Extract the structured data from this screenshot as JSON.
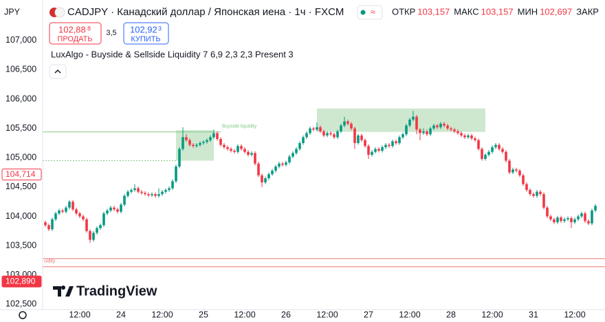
{
  "header": {
    "currency": "JPY",
    "symbol": "CADJPY · Канадский доллар / Японская иена · 1ч · FXCM",
    "ohlc": [
      {
        "label": "ОТКР",
        "value": "103,157"
      },
      {
        "label": "МАКС",
        "value": "103,157"
      },
      {
        "label": "МИН",
        "value": "102,697"
      },
      {
        "label": "ЗАКР"
      }
    ],
    "sell": {
      "price": "102,88",
      "pip": "8",
      "label": "ПРОДАТЬ"
    },
    "spread": "3,5",
    "buy": {
      "price": "102,92",
      "pip": "3",
      "label": "КУПИТЬ"
    },
    "indicator": "LuxAlgo - Buyside & Sellside Liquidity 7 6,9 2,3 2,3 Present 3",
    "logo": "TradingView"
  },
  "chart_data": {
    "type": "candlestick",
    "up_color": "#089981",
    "down_color": "#f23645",
    "ylim": [
      102.41,
      107.69
    ],
    "xlim": [
      -0.8,
      162.8
    ],
    "yticks": [
      {
        "value": 102.5,
        "label": "102,500"
      },
      {
        "value": 103,
        "label": "103,000"
      },
      {
        "value": 103.5,
        "label": "103,500"
      },
      {
        "value": 104,
        "label": "104,000"
      },
      {
        "value": 104.5,
        "label": "104,500"
      },
      {
        "value": 105,
        "label": "105,000"
      },
      {
        "value": 105.5,
        "label": "105,500"
      },
      {
        "value": 106,
        "label": "106,000"
      },
      {
        "value": 106.5,
        "label": "106,500"
      },
      {
        "value": 107,
        "label": "107,000"
      }
    ],
    "xticks": [
      {
        "value": 10,
        "label": "12:00"
      },
      {
        "value": 22,
        "label": "24"
      },
      {
        "value": 34,
        "label": "12:00"
      },
      {
        "value": 46,
        "label": "25"
      },
      {
        "value": 58,
        "label": "12:00"
      },
      {
        "value": 70,
        "label": "26"
      },
      {
        "value": 82,
        "label": "12:00"
      },
      {
        "value": 94,
        "label": "27"
      },
      {
        "value": 106,
        "label": "12:00"
      },
      {
        "value": 118,
        "label": "28"
      },
      {
        "value": 130,
        "label": "12:00"
      },
      {
        "value": 142,
        "label": "31"
      },
      {
        "value": 154,
        "label": "12:00"
      }
    ],
    "zones": [
      {
        "x": [
          38,
          49
        ],
        "y": [
          104.95,
          105.47
        ],
        "color": "#a5d6a7"
      },
      {
        "x": [
          79,
          128
        ],
        "y": [
          105.44,
          105.84
        ],
        "color": "#a5d6a7"
      }
    ],
    "levels": [
      {
        "value": 105.44,
        "x": [
          -1,
          51
        ],
        "color": "#81c784",
        "label": "Buyside liquidity"
      },
      {
        "value": 104.95,
        "x": [
          -1,
          38
        ],
        "color": "#81c784"
      },
      {
        "value": 103.28,
        "x": [
          -1,
          163
        ],
        "color": "#e57373"
      },
      {
        "value": 103.14,
        "x": [
          -1,
          163
        ],
        "color": "#e57373",
        "label": "uidity"
      }
    ],
    "price_labels": [
      {
        "value": 104.714,
        "label": "104,714",
        "style": "outline",
        "color": "#f23645"
      },
      {
        "value": 102.89,
        "label": "102,890",
        "style": "filled",
        "color": "#f23645"
      }
    ],
    "candles": [
      [
        103.9,
        103.93,
        103.82,
        103.85
      ],
      [
        103.85,
        103.88,
        103.75,
        103.78
      ],
      [
        103.78,
        103.98,
        103.75,
        103.95
      ],
      [
        103.95,
        104.08,
        103.92,
        104.05
      ],
      [
        104.05,
        104.13,
        104.02,
        104.1
      ],
      [
        104.1,
        104.13,
        104.05,
        104.08
      ],
      [
        104.08,
        104.18,
        104.05,
        104.15
      ],
      [
        104.15,
        104.28,
        104.12,
        104.25
      ],
      [
        104.25,
        104.28,
        104.09,
        104.12
      ],
      [
        104.12,
        104.15,
        104.02,
        104.05
      ],
      [
        104.05,
        104.08,
        103.97,
        104.0
      ],
      [
        104.0,
        104.03,
        103.92,
        103.95
      ],
      [
        103.95,
        103.98,
        103.72,
        103.75
      ],
      [
        103.75,
        103.78,
        103.55,
        103.6
      ],
      [
        103.6,
        103.75,
        103.57,
        103.72
      ],
      [
        103.72,
        103.83,
        103.69,
        103.8
      ],
      [
        103.8,
        103.88,
        103.77,
        103.85
      ],
      [
        103.85,
        104.08,
        103.82,
        104.05
      ],
      [
        104.05,
        104.13,
        104.02,
        104.1
      ],
      [
        104.1,
        104.18,
        104.07,
        104.15
      ],
      [
        104.15,
        104.18,
        104.09,
        104.12
      ],
      [
        104.12,
        104.15,
        104.05,
        104.08
      ],
      [
        104.08,
        104.23,
        104.05,
        104.2
      ],
      [
        104.2,
        104.38,
        104.17,
        104.35
      ],
      [
        104.35,
        104.45,
        104.32,
        104.42
      ],
      [
        104.42,
        104.48,
        104.39,
        104.45
      ],
      [
        104.45,
        104.55,
        104.42,
        104.48
      ],
      [
        104.48,
        104.51,
        104.39,
        104.42
      ],
      [
        104.42,
        104.45,
        104.37,
        104.4
      ],
      [
        104.4,
        104.43,
        104.35,
        104.38
      ],
      [
        104.38,
        104.41,
        104.33,
        104.36
      ],
      [
        104.36,
        104.41,
        104.33,
        104.38
      ],
      [
        104.38,
        104.41,
        104.32,
        104.35
      ],
      [
        104.35,
        104.48,
        104.32,
        104.38
      ],
      [
        104.38,
        104.45,
        104.35,
        104.42
      ],
      [
        104.42,
        104.48,
        104.39,
        104.45
      ],
      [
        104.45,
        104.51,
        104.42,
        104.48
      ],
      [
        104.48,
        104.63,
        104.45,
        104.6
      ],
      [
        104.6,
        104.88,
        104.57,
        104.85
      ],
      [
        104.85,
        105.18,
        104.82,
        105.15
      ],
      [
        105.15,
        105.52,
        105.12,
        105.35
      ],
      [
        105.35,
        105.4,
        105.27,
        105.3
      ],
      [
        105.3,
        105.33,
        105.19,
        105.22
      ],
      [
        105.22,
        105.25,
        105.17,
        105.2
      ],
      [
        105.2,
        105.25,
        105.17,
        105.22
      ],
      [
        105.22,
        105.28,
        105.19,
        105.25
      ],
      [
        105.25,
        105.3,
        105.22,
        105.27
      ],
      [
        105.27,
        105.33,
        105.24,
        105.3
      ],
      [
        105.3,
        105.38,
        105.27,
        105.35
      ],
      [
        105.35,
        105.48,
        105.32,
        105.42
      ],
      [
        105.42,
        105.45,
        105.29,
        105.32
      ],
      [
        105.32,
        105.35,
        105.19,
        105.22
      ],
      [
        105.22,
        105.25,
        105.15,
        105.18
      ],
      [
        105.18,
        105.21,
        105.12,
        105.15
      ],
      [
        105.15,
        105.18,
        105.09,
        105.12
      ],
      [
        105.12,
        105.15,
        105.07,
        105.1
      ],
      [
        105.1,
        105.23,
        105.07,
        105.2
      ],
      [
        105.2,
        105.23,
        105.12,
        105.15
      ],
      [
        105.15,
        105.18,
        105.07,
        105.1
      ],
      [
        105.1,
        105.13,
        105.02,
        105.05
      ],
      [
        105.05,
        105.11,
        105.02,
        105.08
      ],
      [
        105.08,
        105.11,
        104.87,
        104.9
      ],
      [
        104.9,
        104.93,
        104.67,
        104.7
      ],
      [
        104.7,
        104.73,
        104.5,
        104.58
      ],
      [
        104.58,
        104.68,
        104.55,
        104.65
      ],
      [
        104.65,
        104.75,
        104.62,
        104.72
      ],
      [
        104.72,
        104.81,
        104.69,
        104.78
      ],
      [
        104.78,
        104.88,
        104.75,
        104.85
      ],
      [
        104.85,
        104.93,
        104.82,
        104.9
      ],
      [
        104.9,
        104.93,
        104.85,
        104.88
      ],
      [
        104.88,
        104.95,
        104.85,
        104.92
      ],
      [
        104.92,
        105.05,
        104.89,
        105.02
      ],
      [
        105.02,
        105.11,
        104.99,
        105.08
      ],
      [
        105.08,
        105.18,
        105.05,
        105.15
      ],
      [
        105.15,
        105.28,
        105.12,
        105.25
      ],
      [
        105.25,
        105.38,
        105.22,
        105.35
      ],
      [
        105.35,
        105.45,
        105.32,
        105.42
      ],
      [
        105.42,
        105.53,
        105.39,
        105.5
      ],
      [
        105.5,
        105.53,
        105.45,
        105.48
      ],
      [
        105.48,
        105.6,
        105.45,
        105.52
      ],
      [
        105.52,
        105.55,
        105.42,
        105.45
      ],
      [
        105.45,
        105.48,
        105.35,
        105.38
      ],
      [
        105.38,
        105.45,
        105.35,
        105.42
      ],
      [
        105.42,
        105.45,
        105.37,
        105.4
      ],
      [
        105.4,
        105.43,
        105.32,
        105.35
      ],
      [
        105.35,
        105.48,
        105.32,
        105.45
      ],
      [
        105.45,
        105.58,
        105.42,
        105.55
      ],
      [
        105.55,
        105.7,
        105.52,
        105.62
      ],
      [
        105.62,
        105.65,
        105.55,
        105.58
      ],
      [
        105.58,
        105.61,
        105.47,
        105.5
      ],
      [
        105.5,
        105.53,
        105.15,
        105.25
      ],
      [
        105.25,
        105.41,
        105.22,
        105.38
      ],
      [
        105.38,
        105.41,
        105.27,
        105.3
      ],
      [
        105.3,
        105.33,
        105.17,
        105.2
      ],
      [
        105.2,
        105.23,
        104.98,
        105.05
      ],
      [
        105.05,
        105.13,
        105.02,
        105.1
      ],
      [
        105.1,
        105.18,
        105.07,
        105.15
      ],
      [
        105.15,
        105.18,
        105.09,
        105.12
      ],
      [
        105.12,
        105.21,
        105.09,
        105.18
      ],
      [
        105.18,
        105.25,
        105.15,
        105.22
      ],
      [
        105.22,
        105.25,
        105.17,
        105.2
      ],
      [
        105.2,
        105.31,
        105.17,
        105.28
      ],
      [
        105.28,
        105.31,
        105.22,
        105.25
      ],
      [
        105.25,
        105.38,
        105.22,
        105.35
      ],
      [
        105.35,
        105.43,
        105.32,
        105.4
      ],
      [
        105.4,
        105.58,
        105.37,
        105.55
      ],
      [
        105.55,
        105.68,
        105.52,
        105.65
      ],
      [
        105.65,
        105.8,
        105.62,
        105.7
      ],
      [
        105.7,
        105.73,
        105.4,
        105.48
      ],
      [
        105.48,
        105.51,
        105.3,
        105.42
      ],
      [
        105.42,
        105.5,
        105.39,
        105.45
      ],
      [
        105.45,
        105.48,
        105.37,
        105.4
      ],
      [
        105.4,
        105.53,
        105.37,
        105.5
      ],
      [
        105.5,
        105.58,
        105.47,
        105.55
      ],
      [
        105.55,
        105.58,
        105.49,
        105.52
      ],
      [
        105.52,
        105.61,
        105.49,
        105.58
      ],
      [
        105.58,
        105.61,
        105.52,
        105.55
      ],
      [
        105.55,
        105.58,
        105.47,
        105.5
      ],
      [
        105.5,
        105.53,
        105.45,
        105.48
      ],
      [
        105.48,
        105.51,
        105.42,
        105.45
      ],
      [
        105.45,
        105.48,
        105.39,
        105.42
      ],
      [
        105.42,
        105.45,
        105.35,
        105.38
      ],
      [
        105.38,
        105.41,
        105.32,
        105.35
      ],
      [
        105.35,
        105.41,
        105.32,
        105.38
      ],
      [
        105.38,
        105.41,
        105.3,
        105.33
      ],
      [
        105.33,
        105.36,
        105.27,
        105.3
      ],
      [
        105.3,
        105.33,
        105.12,
        105.15
      ],
      [
        105.15,
        105.18,
        104.95,
        104.98
      ],
      [
        104.98,
        105.08,
        104.95,
        105.05
      ],
      [
        105.05,
        105.13,
        105.02,
        105.1
      ],
      [
        105.1,
        105.21,
        105.07,
        105.18
      ],
      [
        105.18,
        105.25,
        105.15,
        105.22
      ],
      [
        105.22,
        105.25,
        105.12,
        105.15
      ],
      [
        105.15,
        105.18,
        105.07,
        105.1
      ],
      [
        105.1,
        105.13,
        104.92,
        104.95
      ],
      [
        104.95,
        104.98,
        104.72,
        104.75
      ],
      [
        104.75,
        104.83,
        104.72,
        104.8
      ],
      [
        104.8,
        104.83,
        104.75,
        104.78
      ],
      [
        104.78,
        104.81,
        104.67,
        104.7
      ],
      [
        104.7,
        104.73,
        104.52,
        104.55
      ],
      [
        104.55,
        104.58,
        104.42,
        104.45
      ],
      [
        104.45,
        104.48,
        104.35,
        104.38
      ],
      [
        104.38,
        104.41,
        104.32,
        104.35
      ],
      [
        104.35,
        104.45,
        104.32,
        104.42
      ],
      [
        104.42,
        104.45,
        104.35,
        104.38
      ],
      [
        104.38,
        104.41,
        104.12,
        104.15
      ],
      [
        104.15,
        104.18,
        103.97,
        104.0
      ],
      [
        104.0,
        104.03,
        103.92,
        103.95
      ],
      [
        103.95,
        103.98,
        103.87,
        103.9
      ],
      [
        103.9,
        104.01,
        103.87,
        103.98
      ],
      [
        103.98,
        104.01,
        103.89,
        103.92
      ],
      [
        103.92,
        103.98,
        103.89,
        103.95
      ],
      [
        103.95,
        104.0,
        103.92,
        103.97
      ],
      [
        103.97,
        104.0,
        103.8,
        103.9
      ],
      [
        103.9,
        103.98,
        103.87,
        103.95
      ],
      [
        103.95,
        104.03,
        103.92,
        104.0
      ],
      [
        104.0,
        104.08,
        103.97,
        104.05
      ],
      [
        104.05,
        104.08,
        103.89,
        103.92
      ],
      [
        103.92,
        103.95,
        103.85,
        103.88
      ],
      [
        103.88,
        104.13,
        103.85,
        104.1
      ],
      [
        104.1,
        104.21,
        104.07,
        104.18
      ]
    ]
  }
}
